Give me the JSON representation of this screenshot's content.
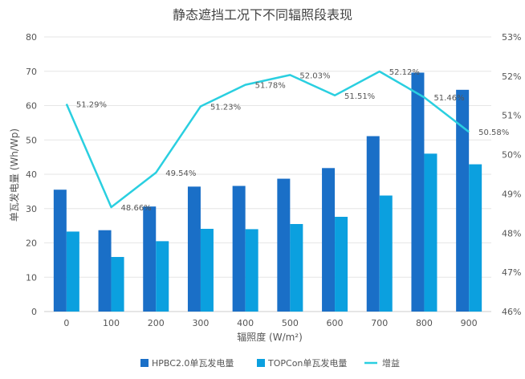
{
  "chart_data": {
    "type": "bar",
    "title": "静态遮挡工况下不同辐照段表现",
    "xlabel": "辐照度 (W/m²)",
    "ylabel": "单瓦发电量 (Wh/Wp)",
    "categories": [
      "0",
      "100",
      "200",
      "300",
      "400",
      "500",
      "600",
      "700",
      "800",
      "900"
    ],
    "ylim": [
      0,
      80
    ],
    "y_ticks": [
      "0",
      "10",
      "20",
      "30",
      "40",
      "50",
      "60",
      "70",
      "80"
    ],
    "y2lim": [
      46,
      53
    ],
    "y2_ticks": [
      "46%",
      "47%",
      "48%",
      "49%",
      "50%",
      "51%",
      "52%",
      "53%"
    ],
    "grid": true,
    "legend_position": "bottom",
    "series": [
      {
        "name": "HPBC2.0单瓦发电量",
        "type": "bar",
        "axis": "left",
        "color": "#1a6fc7",
        "values": [
          35.5,
          23.7,
          30.6,
          36.4,
          36.6,
          38.7,
          41.8,
          51.1,
          69.6,
          64.6
        ]
      },
      {
        "name": "TOPCon单瓦发电量",
        "type": "bar",
        "axis": "left",
        "color": "#0ba0df",
        "values": [
          23.3,
          15.9,
          20.5,
          24.1,
          24.0,
          25.5,
          27.6,
          33.8,
          46.0,
          42.9
        ]
      },
      {
        "name": "增益",
        "type": "line",
        "axis": "right",
        "color": "#2acfe0",
        "values": [
          51.29,
          48.66,
          49.54,
          51.23,
          51.78,
          52.03,
          51.51,
          52.12,
          51.46,
          50.58
        ],
        "labels": [
          "51.29%",
          "48.66%",
          "49.54%",
          "51.23%",
          "51.78%",
          "52.03%",
          "51.51%",
          "52.12%",
          "51.46%",
          "50.58%"
        ]
      }
    ]
  }
}
